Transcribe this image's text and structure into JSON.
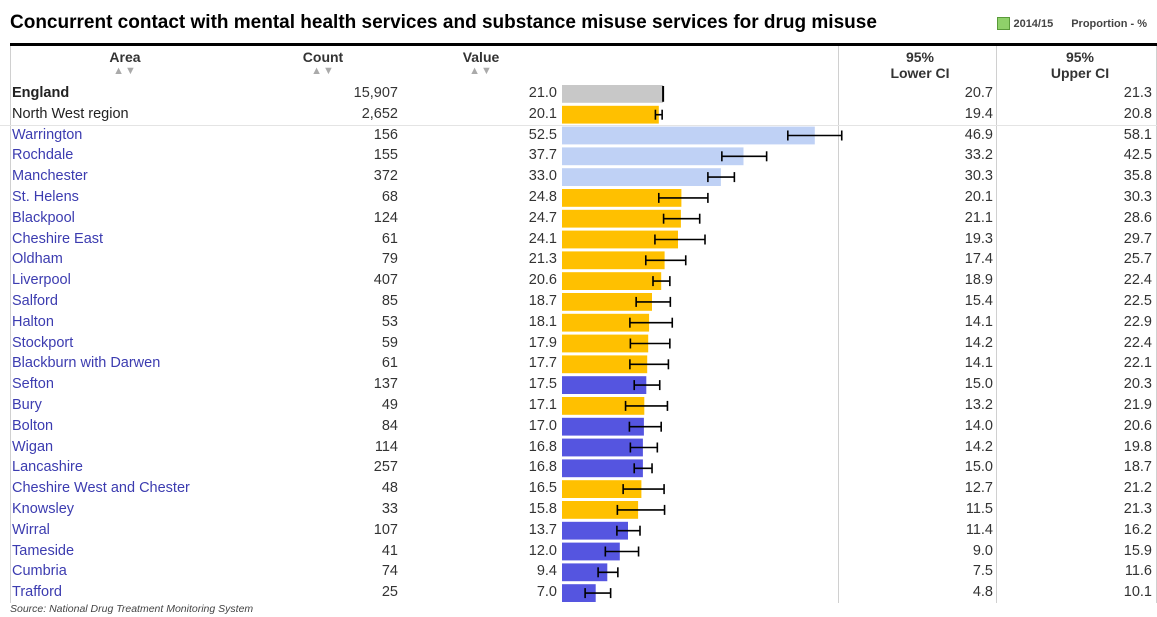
{
  "title": "Concurrent contact with mental health services and substance misuse services for drug misuse",
  "legend": {
    "period": "2014/15",
    "unit": "Proportion - %",
    "swatch_color": "#8fd16a"
  },
  "headers": {
    "area": "Area",
    "count": "Count",
    "value": "Value",
    "lower_1": "95%",
    "lower_2": "Lower CI",
    "upper_1": "95%",
    "upper_2": "Upper CI",
    "sort_glyph": "▲▼"
  },
  "source": "Source: National Drug Treatment Monitoring System",
  "colors": {
    "benchmark": "#c8c8c8",
    "similar": "#ffc000",
    "higher": "#bfd1f5",
    "lower": "#5555e0",
    "ci": "#000000"
  },
  "chart_data": {
    "type": "bar",
    "orientation": "horizontal",
    "value_axis_max": 56.7,
    "rows": [
      {
        "area": "England",
        "count": "15,907",
        "value": 21.0,
        "lower": 20.7,
        "upper": 21.3,
        "status": "benchmark"
      },
      {
        "area": "North West region",
        "count": "2,652",
        "value": 20.1,
        "lower": 19.4,
        "upper": 20.8,
        "status": "similar"
      },
      {
        "area": "Warrington",
        "count": "156",
        "value": 52.5,
        "lower": 46.9,
        "upper": 58.1,
        "status": "higher"
      },
      {
        "area": "Rochdale",
        "count": "155",
        "value": 37.7,
        "lower": 33.2,
        "upper": 42.5,
        "status": "higher"
      },
      {
        "area": "Manchester",
        "count": "372",
        "value": 33.0,
        "lower": 30.3,
        "upper": 35.8,
        "status": "higher"
      },
      {
        "area": "St. Helens",
        "count": "68",
        "value": 24.8,
        "lower": 20.1,
        "upper": 30.3,
        "status": "similar"
      },
      {
        "area": "Blackpool",
        "count": "124",
        "value": 24.7,
        "lower": 21.1,
        "upper": 28.6,
        "status": "similar"
      },
      {
        "area": "Cheshire East",
        "count": "61",
        "value": 24.1,
        "lower": 19.3,
        "upper": 29.7,
        "status": "similar"
      },
      {
        "area": "Oldham",
        "count": "79",
        "value": 21.3,
        "lower": 17.4,
        "upper": 25.7,
        "status": "similar"
      },
      {
        "area": "Liverpool",
        "count": "407",
        "value": 20.6,
        "lower": 18.9,
        "upper": 22.4,
        "status": "similar"
      },
      {
        "area": "Salford",
        "count": "85",
        "value": 18.7,
        "lower": 15.4,
        "upper": 22.5,
        "status": "similar"
      },
      {
        "area": "Halton",
        "count": "53",
        "value": 18.1,
        "lower": 14.1,
        "upper": 22.9,
        "status": "similar"
      },
      {
        "area": "Stockport",
        "count": "59",
        "value": 17.9,
        "lower": 14.2,
        "upper": 22.4,
        "status": "similar"
      },
      {
        "area": "Blackburn with Darwen",
        "count": "61",
        "value": 17.7,
        "lower": 14.1,
        "upper": 22.1,
        "status": "similar"
      },
      {
        "area": "Sefton",
        "count": "137",
        "value": 17.5,
        "lower": 15.0,
        "upper": 20.3,
        "status": "lower"
      },
      {
        "area": "Bury",
        "count": "49",
        "value": 17.1,
        "lower": 13.2,
        "upper": 21.9,
        "status": "similar"
      },
      {
        "area": "Bolton",
        "count": "84",
        "value": 17.0,
        "lower": 14.0,
        "upper": 20.6,
        "status": "lower"
      },
      {
        "area": "Wigan",
        "count": "114",
        "value": 16.8,
        "lower": 14.2,
        "upper": 19.8,
        "status": "lower"
      },
      {
        "area": "Lancashire",
        "count": "257",
        "value": 16.8,
        "lower": 15.0,
        "upper": 18.7,
        "status": "lower"
      },
      {
        "area": "Cheshire West and Chester",
        "count": "48",
        "value": 16.5,
        "lower": 12.7,
        "upper": 21.2,
        "status": "similar"
      },
      {
        "area": "Knowsley",
        "count": "33",
        "value": 15.8,
        "lower": 11.5,
        "upper": 21.3,
        "status": "similar"
      },
      {
        "area": "Wirral",
        "count": "107",
        "value": 13.7,
        "lower": 11.4,
        "upper": 16.2,
        "status": "lower"
      },
      {
        "area": "Tameside",
        "count": "41",
        "value": 12.0,
        "lower": 9.0,
        "upper": 15.9,
        "status": "lower"
      },
      {
        "area": "Cumbria",
        "count": "74",
        "value": 9.4,
        "lower": 7.5,
        "upper": 11.6,
        "status": "lower"
      },
      {
        "area": "Trafford",
        "count": "25",
        "value": 7.0,
        "lower": 4.8,
        "upper": 10.1,
        "status": "lower"
      }
    ]
  }
}
